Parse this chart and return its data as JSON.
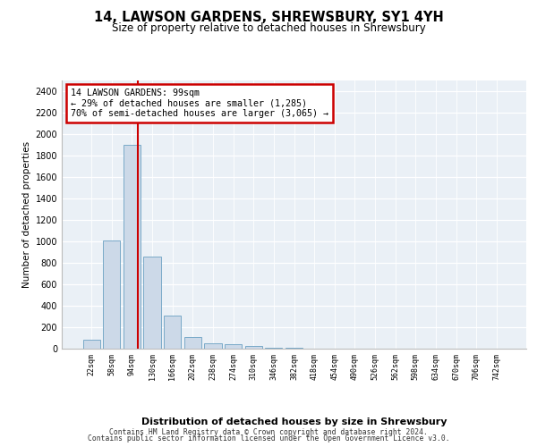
{
  "title1": "14, LAWSON GARDENS, SHREWSBURY, SY1 4YH",
  "title2": "Size of property relative to detached houses in Shrewsbury",
  "xlabel": "Distribution of detached houses by size in Shrewsbury",
  "ylabel": "Number of detached properties",
  "bin_labels": [
    "22sqm",
    "58sqm",
    "94sqm",
    "130sqm",
    "166sqm",
    "202sqm",
    "238sqm",
    "274sqm",
    "310sqm",
    "346sqm",
    "382sqm",
    "418sqm",
    "454sqm",
    "490sqm",
    "526sqm",
    "562sqm",
    "598sqm",
    "634sqm",
    "670sqm",
    "706sqm",
    "742sqm"
  ],
  "bar_values": [
    80,
    1010,
    1900,
    860,
    310,
    110,
    50,
    40,
    25,
    10,
    5,
    3,
    2,
    0,
    0,
    0,
    0,
    0,
    0,
    0,
    0
  ],
  "bar_color": "#ccd9e8",
  "bar_edge_color": "#7aaac8",
  "property_line_x": 2.27,
  "annotation_line1": "14 LAWSON GARDENS: 99sqm",
  "annotation_line2": "← 29% of detached houses are smaller (1,285)",
  "annotation_line3": "70% of semi-detached houses are larger (3,065) →",
  "annotation_box_color": "#ffffff",
  "annotation_box_edge": "#cc0000",
  "vline_color": "#cc0000",
  "ylim": [
    0,
    2500
  ],
  "yticks": [
    0,
    200,
    400,
    600,
    800,
    1000,
    1200,
    1400,
    1600,
    1800,
    2000,
    2200,
    2400
  ],
  "footer1": "Contains HM Land Registry data © Crown copyright and database right 2024.",
  "footer2": "Contains public sector information licensed under the Open Government Licence v3.0.",
  "bg_color": "#ffffff",
  "plot_bg_color": "#eaf0f6"
}
